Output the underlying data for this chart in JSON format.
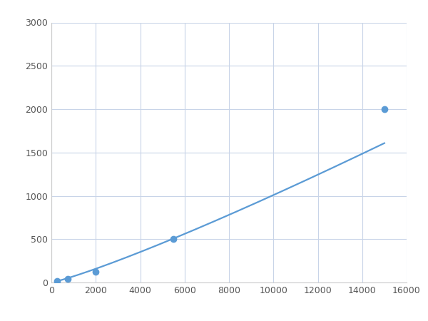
{
  "x": [
    250,
    750,
    2000,
    5500,
    15000
  ],
  "y": [
    20,
    40,
    120,
    500,
    2000
  ],
  "line_color": "#5b9bd5",
  "marker_color": "#5b9bd5",
  "marker_size": 6,
  "xlim": [
    0,
    16000
  ],
  "ylim": [
    0,
    3000
  ],
  "xticks": [
    0,
    2000,
    4000,
    6000,
    8000,
    10000,
    12000,
    14000,
    16000
  ],
  "yticks": [
    0,
    500,
    1000,
    1500,
    2000,
    2500,
    3000
  ],
  "grid_color": "#c8d4e8",
  "background_color": "#ffffff",
  "line_width": 1.6,
  "figsize": [
    6.0,
    4.5
  ],
  "dpi": 100
}
